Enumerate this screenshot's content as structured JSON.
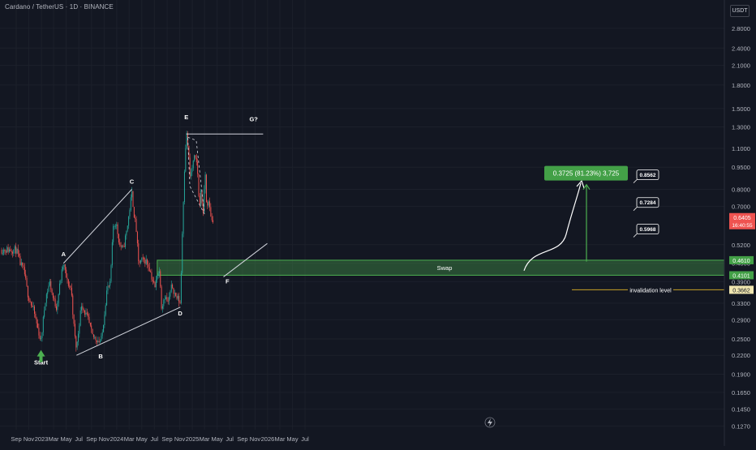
{
  "header": {
    "title": "Cardano / TetherUS · 1D · BINANCE",
    "unit": "USDT"
  },
  "colors": {
    "background": "#131722",
    "up": "#26a69a",
    "down": "#ef5350",
    "zone": "#4caf50",
    "annotation": "#d1d4dc",
    "invalidation": "#c9a227"
  },
  "icons": [
    "lightning-icon",
    "arrow-up-icon"
  ],
  "chart_data": {
    "type": "candlestick",
    "y_scale": "log",
    "ylim": [
      0.12,
      3.3
    ],
    "y_ticks": [
      "2.8000",
      "2.4000",
      "2.1000",
      "1.8000",
      "1.5000",
      "1.3000",
      "1.1000",
      "0.9500",
      "0.8000",
      "0.7000",
      "0.5200",
      "0.4500",
      "0.3900",
      "0.3300",
      "0.2900",
      "0.2500",
      "0.2200",
      "0.1900",
      "0.1650",
      "0.1450",
      "0.1270"
    ],
    "x_ticks": [
      "Sep",
      "Nov",
      "2023",
      "Mar",
      "May",
      "Jul",
      "Sep",
      "Nov",
      "2024",
      "Mar",
      "May",
      "Jul",
      "Sep",
      "Nov",
      "2025",
      "Mar",
      "May",
      "Jul",
      "Sep",
      "Nov",
      "2026",
      "Mar",
      "May",
      "Jul"
    ],
    "price_path": [
      [
        "2022-09-01",
        0.5
      ],
      [
        "2022-09-20",
        0.45
      ],
      [
        "2022-10-10",
        0.42
      ],
      [
        "2022-10-25",
        0.36
      ],
      [
        "2022-11-10",
        0.33
      ],
      [
        "2022-11-25",
        0.31
      ],
      [
        "2022-12-15",
        0.27
      ],
      [
        "2022-12-30",
        0.245
      ],
      [
        "2023-01-20",
        0.34
      ],
      [
        "2023-02-10",
        0.39
      ],
      [
        "2023-02-28",
        0.34
      ],
      [
        "2023-03-15",
        0.32
      ],
      [
        "2023-04-05",
        0.4
      ],
      [
        "2023-04-18",
        0.45
      ],
      [
        "2023-05-05",
        0.39
      ],
      [
        "2023-05-25",
        0.37
      ],
      [
        "2023-06-10",
        0.26
      ],
      [
        "2023-06-20",
        0.23
      ],
      [
        "2023-07-05",
        0.29
      ],
      [
        "2023-07-15",
        0.33
      ],
      [
        "2023-07-28",
        0.31
      ],
      [
        "2023-08-15",
        0.29
      ],
      [
        "2023-09-05",
        0.255
      ],
      [
        "2023-09-25",
        0.25
      ],
      [
        "2023-10-10",
        0.245
      ],
      [
        "2023-10-20",
        0.25
      ],
      [
        "2023-11-01",
        0.3
      ],
      [
        "2023-11-15",
        0.37
      ],
      [
        "2023-11-30",
        0.38
      ],
      [
        "2023-12-15",
        0.6
      ],
      [
        "2023-12-28",
        0.62
      ],
      [
        "2024-01-15",
        0.52
      ],
      [
        "2024-02-01",
        0.5
      ],
      [
        "2024-02-20",
        0.59
      ],
      [
        "2024-03-05",
        0.7
      ],
      [
        "2024-03-14",
        0.78
      ],
      [
        "2024-03-25",
        0.66
      ],
      [
        "2024-04-05",
        0.58
      ],
      [
        "2024-04-15",
        0.45
      ],
      [
        "2024-05-01",
        0.46
      ],
      [
        "2024-05-20",
        0.46
      ],
      [
        "2024-06-05",
        0.44
      ],
      [
        "2024-06-20",
        0.4
      ],
      [
        "2024-07-05",
        0.37
      ],
      [
        "2024-07-15",
        0.42
      ],
      [
        "2024-07-28",
        0.42
      ],
      [
        "2024-08-05",
        0.32
      ],
      [
        "2024-08-20",
        0.35
      ],
      [
        "2024-09-05",
        0.33
      ],
      [
        "2024-09-25",
        0.38
      ],
      [
        "2024-10-10",
        0.35
      ],
      [
        "2024-10-25",
        0.34
      ],
      [
        "2024-11-04",
        0.33
      ],
      [
        "2024-11-15",
        0.62
      ],
      [
        "2024-11-25",
        0.98
      ],
      [
        "2024-12-03",
        1.25
      ],
      [
        "2024-12-12",
        1.1
      ],
      [
        "2024-12-20",
        0.88
      ],
      [
        "2024-12-28",
        0.92
      ],
      [
        "2025-01-10",
        1.02
      ],
      [
        "2025-01-25",
        0.97
      ],
      [
        "2025-02-03",
        0.7
      ],
      [
        "2025-02-12",
        0.78
      ],
      [
        "2025-02-25",
        0.65
      ],
      [
        "2025-03-03",
        0.98
      ],
      [
        "2025-03-10",
        0.72
      ],
      [
        "2025-03-20",
        0.72
      ],
      [
        "2025-03-28",
        0.68
      ],
      [
        "2025-04-07",
        0.62
      ],
      [
        "2025-04-12",
        0.6405
      ]
    ],
    "wave_labels": [
      {
        "text": "Start",
        "date": "2022-12-30",
        "price": 0.205
      },
      {
        "text": "A",
        "date": "2023-04-18",
        "price": 0.475
      },
      {
        "text": "B",
        "date": "2023-10-15",
        "price": 0.215
      },
      {
        "text": "C",
        "date": "2024-03-14",
        "price": 0.835
      },
      {
        "text": "D",
        "date": "2024-11-03",
        "price": 0.3
      },
      {
        "text": "E",
        "date": "2024-12-03",
        "price": 1.38
      },
      {
        "text": "F",
        "date": "2025-06-20",
        "price": 0.385
      },
      {
        "text": "G?",
        "date": "2025-10-25",
        "price": 1.36
      }
    ],
    "trendlines": [
      {
        "name": "trendline-ac",
        "from": [
          "2023-04-18",
          0.45
        ],
        "to": [
          "2024-03-14",
          0.8
        ]
      },
      {
        "name": "trendline-bdf",
        "from": [
          "2023-06-20",
          0.22
        ],
        "to": [
          "2024-11-04",
          0.32
        ]
      },
      {
        "name": "trendline-f-projection",
        "from": [
          "2025-06-01",
          0.405
        ],
        "to": [
          "2025-12-30",
          0.525
        ]
      },
      {
        "name": "trendline-g-target",
        "from": [
          "2024-12-03",
          1.23
        ],
        "to": [
          "2025-12-10",
          1.23
        ]
      }
    ],
    "dashed_triangle": [
      [
        "2024-12-10",
        1.2
      ],
      [
        "2025-01-20",
        1.17
      ],
      [
        "2025-03-01",
        0.66
      ],
      [
        "2024-12-20",
        0.82
      ]
    ],
    "swap_zone": {
      "label": "Swap",
      "low": 0.4101,
      "high": 0.461,
      "from": "2024-07-15"
    },
    "target_box": {
      "text": "0.3725 (81.23%) 3,725"
    },
    "target_prices": [
      "0.8562",
      "0.7284",
      "0.5968"
    ],
    "invalidation": {
      "label": "invalidation level",
      "price": "0.3662"
    },
    "price_labels": {
      "current": "0.6405",
      "countdown": "16:40:55",
      "zone_high": "0.4610",
      "zone_low": "0.4101",
      "invalidation": "0.3662"
    }
  }
}
